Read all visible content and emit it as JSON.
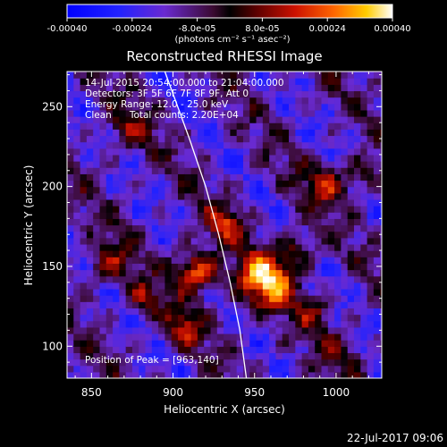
{
  "colorbar": {
    "tick_labels": [
      "-0.00040",
      "-0.00024",
      "-8.0e-05",
      "8.0e-05",
      "0.00024",
      "0.00040"
    ],
    "tick_values": [
      -0.0004,
      -0.00024,
      -8e-05,
      8e-05,
      0.00024,
      0.0004
    ],
    "range": [
      -0.0004,
      0.0004
    ],
    "units_label": "(photons cm⁻² s⁻¹ asec⁻²)"
  },
  "chart_data": {
    "type": "heatmap",
    "title": "Reconstructed RHESSI Image",
    "xlabel": "Heliocentric X (arcsec)",
    "ylabel": "Heliocentric Y (arcsec)",
    "xlim": [
      835,
      1028
    ],
    "ylim": [
      80,
      272
    ],
    "x_ticks": [
      850,
      900,
      950,
      1000
    ],
    "x_tick_labels": [
      "850",
      "900",
      "950",
      "1000"
    ],
    "y_ticks": [
      100,
      150,
      200,
      250
    ],
    "y_tick_labels": [
      "100",
      "150",
      "200",
      "250"
    ],
    "annotations": [
      "14-Jul-2015 20:54:00.000 to 21:04:00.000",
      "Detectors: 3F 5F 6F 7F 8F 9F, Att 0",
      "Energy Range: 12.0 - 25.0 keV",
      "Clean      Total counts: 2.20E+04"
    ],
    "peak_label": "Position of Peak = [963,140]",
    "peak_position": [
      963,
      140
    ],
    "limb_curve": [
      [
        895,
        272
      ],
      [
        910,
        230
      ],
      [
        920,
        200
      ],
      [
        928,
        170
      ],
      [
        935,
        140
      ],
      [
        941,
        110
      ],
      [
        945,
        80
      ]
    ],
    "sources": [
      {
        "x": 955,
        "y": 140,
        "sigma": 12,
        "amp": 1.0
      },
      {
        "x": 912,
        "y": 145,
        "sigma": 9,
        "amp": 0.85
      },
      {
        "x": 930,
        "y": 175,
        "sigma": 8,
        "amp": 0.55
      },
      {
        "x": 858,
        "y": 150,
        "sigma": 9,
        "amp": 0.45
      },
      {
        "x": 880,
        "y": 128,
        "sigma": 7,
        "amp": 0.45
      },
      {
        "x": 905,
        "y": 110,
        "sigma": 8,
        "amp": 0.5
      },
      {
        "x": 975,
        "y": 160,
        "sigma": 7,
        "amp": 0.4
      },
      {
        "x": 992,
        "y": 200,
        "sigma": 10,
        "amp": 0.45
      },
      {
        "x": 1015,
        "y": 205,
        "sigma": 7,
        "amp": 0.4
      },
      {
        "x": 985,
        "y": 120,
        "sigma": 8,
        "amp": 0.35
      },
      {
        "x": 870,
        "y": 235,
        "sigma": 10,
        "amp": 0.35
      },
      {
        "x": 1000,
        "y": 95,
        "sigma": 8,
        "amp": 0.3
      }
    ]
  },
  "footer": {
    "timestamp": "22-Jul-2017 09:06"
  }
}
